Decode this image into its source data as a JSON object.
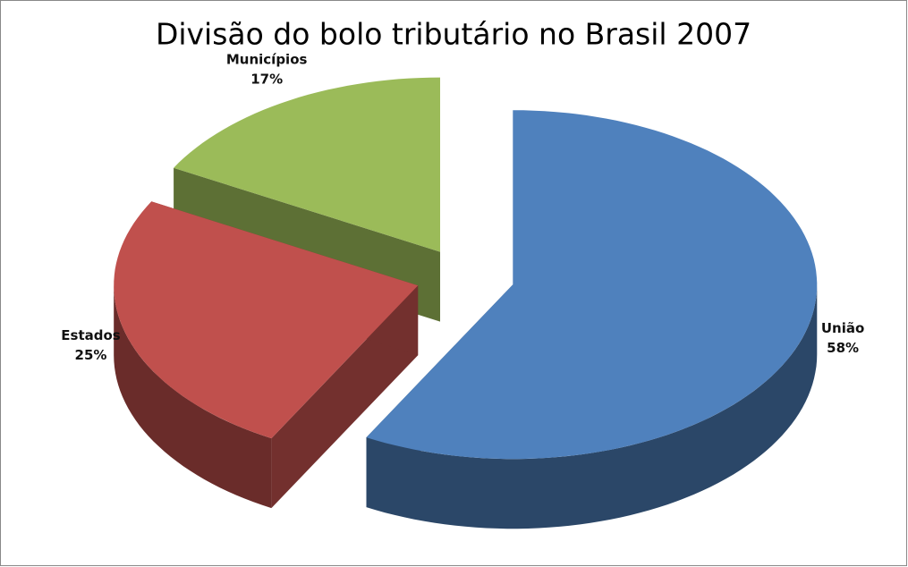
{
  "chart_data": {
    "type": "pie",
    "title": "Divisão do bolo tributário no Brasil 2007",
    "categories": [
      "União",
      "Estados",
      "Municípios"
    ],
    "values": [
      58,
      25,
      17
    ],
    "value_labels": [
      "58%",
      "25%",
      "17%"
    ],
    "colors": [
      "#4f81bd",
      "#c0504d",
      "#9bbb59"
    ]
  }
}
